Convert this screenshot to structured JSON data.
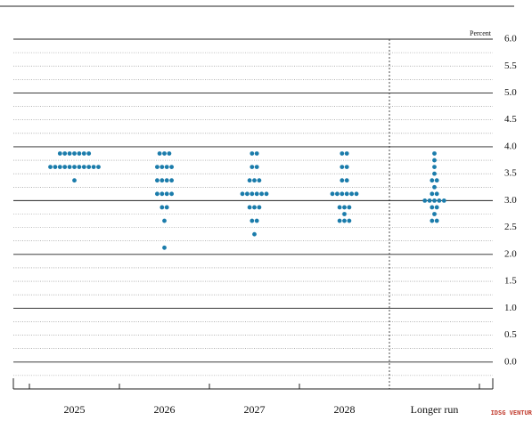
{
  "chart_data": {
    "type": "dot_plot",
    "y_axis_label": "Percent",
    "categories": [
      "2025",
      "2026",
      "2027",
      "2028",
      "Longer run"
    ],
    "values": [
      [
        3.875,
        3.875,
        3.875,
        3.875,
        3.875,
        3.875,
        3.875,
        3.625,
        3.625,
        3.625,
        3.625,
        3.625,
        3.625,
        3.625,
        3.625,
        3.625,
        3.625,
        3.625,
        3.375
      ],
      [
        3.875,
        3.875,
        3.875,
        3.625,
        3.625,
        3.625,
        3.625,
        3.375,
        3.375,
        3.375,
        3.375,
        3.125,
        3.125,
        3.125,
        3.125,
        2.875,
        2.875,
        2.625,
        2.125
      ],
      [
        3.875,
        3.875,
        3.625,
        3.625,
        3.375,
        3.375,
        3.375,
        3.125,
        3.125,
        3.125,
        3.125,
        3.125,
        3.125,
        2.875,
        2.875,
        2.875,
        2.625,
        2.625,
        2.375
      ],
      [
        3.875,
        3.875,
        3.625,
        3.625,
        3.375,
        3.375,
        3.125,
        3.125,
        3.125,
        3.125,
        3.125,
        3.125,
        2.875,
        2.875,
        2.875,
        2.75,
        2.625,
        2.625,
        2.625
      ],
      [
        3.875,
        3.75,
        3.625,
        3.5,
        3.375,
        3.375,
        3.25,
        3.125,
        3.125,
        3.0,
        3.0,
        3.0,
        3.0,
        3.0,
        2.875,
        2.875,
        2.75,
        2.625,
        2.625
      ]
    ],
    "color": "#1b7cab",
    "ylim": [
      -0.5,
      6.0
    ],
    "yticks": [
      {
        "value": 0,
        "label": "0.0"
      },
      0.5,
      {
        "value": 1,
        "label": "1.0"
      },
      1.5,
      {
        "value": 2,
        "label": "2.0"
      },
      2.5,
      {
        "value": 3,
        "label": "3.0"
      },
      3.5,
      {
        "value": 4,
        "label": "4.0"
      },
      4.5,
      {
        "value": 5,
        "label": "5.0"
      },
      5.5,
      {
        "value": 6,
        "label": "6.0"
      }
    ],
    "grid": true,
    "grid_step": 0.25,
    "watermark": "IDSG VENTURES"
  }
}
